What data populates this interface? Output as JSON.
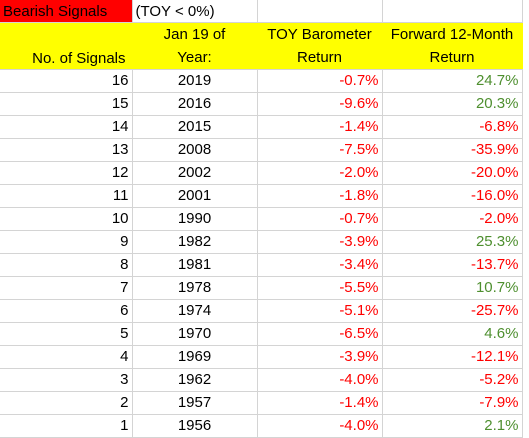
{
  "header": {
    "bearish_label": "Bearish Signals",
    "toy_condition": "(TOY < 0%)",
    "col1_label": "No. of Signals",
    "col2_line1": "Jan 19 of",
    "col2_line2": "Year:",
    "col3_line1": "TOY Barometer",
    "col3_line2": "Return",
    "col4_line1": "Forward 12-Month",
    "col4_line2": "Return"
  },
  "colors": {
    "bearish_fill": "#ff0000",
    "header_fill": "#ffff00",
    "negative_text": "#ff0000",
    "positive_text": "#4e8f2f"
  },
  "rows": [
    {
      "n": "16",
      "year": "2019",
      "toy": "-0.7%",
      "fwd": "24.7%",
      "fwd_sign": "pos"
    },
    {
      "n": "15",
      "year": "2016",
      "toy": "-9.6%",
      "fwd": "20.3%",
      "fwd_sign": "pos"
    },
    {
      "n": "14",
      "year": "2015",
      "toy": "-1.4%",
      "fwd": "-6.8%",
      "fwd_sign": "neg"
    },
    {
      "n": "13",
      "year": "2008",
      "toy": "-7.5%",
      "fwd": "-35.9%",
      "fwd_sign": "neg"
    },
    {
      "n": "12",
      "year": "2002",
      "toy": "-2.0%",
      "fwd": "-20.0%",
      "fwd_sign": "neg"
    },
    {
      "n": "11",
      "year": "2001",
      "toy": "-1.8%",
      "fwd": "-16.0%",
      "fwd_sign": "neg"
    },
    {
      "n": "10",
      "year": "1990",
      "toy": "-0.7%",
      "fwd": "-2.0%",
      "fwd_sign": "neg"
    },
    {
      "n": "9",
      "year": "1982",
      "toy": "-3.9%",
      "fwd": "25.3%",
      "fwd_sign": "pos"
    },
    {
      "n": "8",
      "year": "1981",
      "toy": "-3.4%",
      "fwd": "-13.7%",
      "fwd_sign": "neg"
    },
    {
      "n": "7",
      "year": "1978",
      "toy": "-5.5%",
      "fwd": "10.7%",
      "fwd_sign": "pos"
    },
    {
      "n": "6",
      "year": "1974",
      "toy": "-5.1%",
      "fwd": "-25.7%",
      "fwd_sign": "neg"
    },
    {
      "n": "5",
      "year": "1970",
      "toy": "-6.5%",
      "fwd": "4.6%",
      "fwd_sign": "pos"
    },
    {
      "n": "4",
      "year": "1969",
      "toy": "-3.9%",
      "fwd": "-12.1%",
      "fwd_sign": "neg"
    },
    {
      "n": "3",
      "year": "1962",
      "toy": "-4.0%",
      "fwd": "-5.2%",
      "fwd_sign": "neg"
    },
    {
      "n": "2",
      "year": "1957",
      "toy": "-1.4%",
      "fwd": "-7.9%",
      "fwd_sign": "neg"
    },
    {
      "n": "1",
      "year": "1956",
      "toy": "-4.0%",
      "fwd": "2.1%",
      "fwd_sign": "pos"
    }
  ]
}
